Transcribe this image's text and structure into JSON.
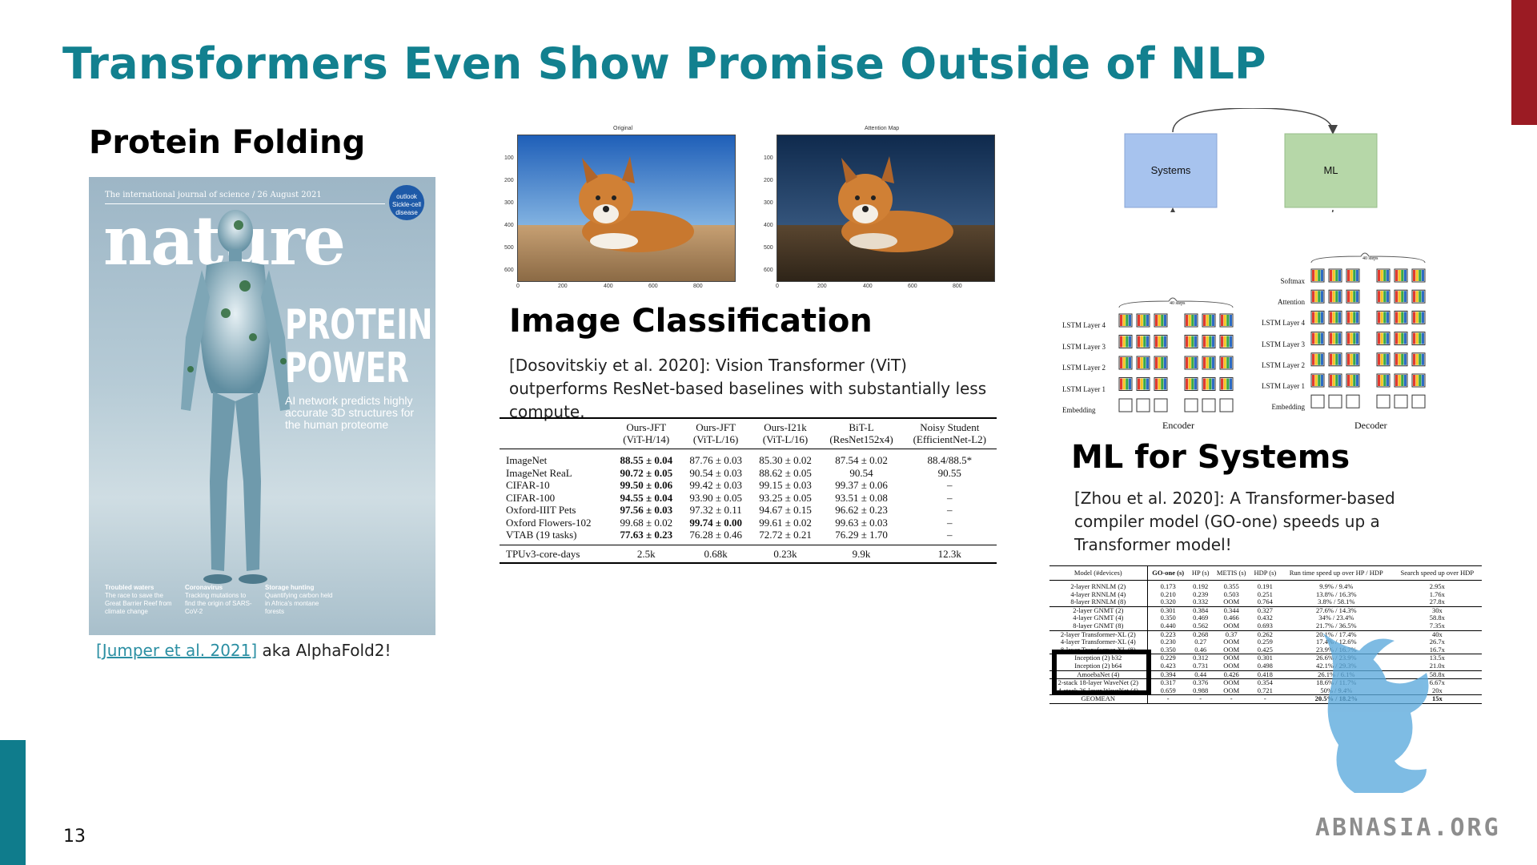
{
  "slide": {
    "title": "Transformers Even Show Promise Outside of NLP",
    "number": "13",
    "accent_colors": {
      "title": "#12808f",
      "right_bar": "#9b1b23",
      "left_bar": "#0f7c8c"
    }
  },
  "protein": {
    "heading": "Protein Folding",
    "citation_link": "[Jumper et al. 2021]",
    "citation_rest": " aka AlphaFold2!",
    "cover": {
      "top_line": "The international journal of science / 26 August 2021",
      "masthead": "nature",
      "badge": "outlook Sickle-cell disease",
      "headline_line1": "PROTEIN",
      "headline_line2": "POWER",
      "subline": "AI network predicts highly accurate 3D structures for the human proteome",
      "footer": [
        {
          "title": "Troubled waters",
          "text": "The race to save the Great Barrier Reef from climate change"
        },
        {
          "title": "Coronavirus",
          "text": "Tracking mutations to find the origin of SARS-CoV-2"
        },
        {
          "title": "Storage hunting",
          "text": "Quantifying carbon held in Africa's montane forests"
        }
      ]
    }
  },
  "image_classification": {
    "heading": "Image Classification",
    "panel_titles": [
      "Original",
      "Attention Map"
    ],
    "y_ticks": [
      "100",
      "200",
      "300",
      "400",
      "500",
      "600"
    ],
    "x_ticks": [
      "0",
      "200",
      "400",
      "600",
      "800"
    ],
    "description": "[Dosovitskiy et al. 2020]: Vision Transformer (ViT) outperforms ResNet-based baselines with substantially less compute.",
    "table": {
      "columns": [
        {
          "l1": "Ours-JFT",
          "l2": "(ViT-H/14)"
        },
        {
          "l1": "Ours-JFT",
          "l2": "(ViT-L/16)"
        },
        {
          "l1": "Ours-I21k",
          "l2": "(ViT-L/16)"
        },
        {
          "l1": "BiT-L",
          "l2": "(ResNet152x4)"
        },
        {
          "l1": "Noisy Student",
          "l2": "(EfficientNet-L2)"
        }
      ],
      "rows": [
        {
          "label": "ImageNet",
          "cells": [
            "88.55 ± 0.04",
            "87.76 ± 0.03",
            "85.30 ± 0.02",
            "87.54 ± 0.02",
            "88.4/88.5*"
          ]
        },
        {
          "label": "ImageNet ReaL",
          "cells": [
            "90.72 ± 0.05",
            "90.54 ± 0.03",
            "88.62 ± 0.05",
            "90.54",
            "90.55"
          ]
        },
        {
          "label": "CIFAR-10",
          "cells": [
            "99.50 ± 0.06",
            "99.42 ± 0.03",
            "99.15 ± 0.03",
            "99.37 ± 0.06",
            "–"
          ]
        },
        {
          "label": "CIFAR-100",
          "cells": [
            "94.55 ± 0.04",
            "93.90 ± 0.05",
            "93.25 ± 0.05",
            "93.51 ± 0.08",
            "–"
          ]
        },
        {
          "label": "Oxford-IIIT Pets",
          "cells": [
            "97.56 ± 0.03",
            "97.32 ± 0.11",
            "94.67 ± 0.15",
            "96.62 ± 0.23",
            "–"
          ]
        },
        {
          "label": "Oxford Flowers-102",
          "cells": [
            "99.68 ± 0.02",
            "99.74 ± 0.00",
            "99.61 ± 0.02",
            "99.63 ± 0.03",
            "–"
          ]
        },
        {
          "label": "VTAB (19 tasks)",
          "cells": [
            "77.63 ± 0.23",
            "76.28 ± 0.46",
            "72.72 ± 0.21",
            "76.29 ± 1.70",
            "–"
          ]
        }
      ],
      "footer": {
        "label": "TPUv3-core-days",
        "cells": [
          "2.5k",
          "0.68k",
          "0.23k",
          "9.9k",
          "12.3k"
        ]
      }
    }
  },
  "ml_systems": {
    "heading": "ML for Systems",
    "description": "[Zhou et al. 2020]: A Transformer-based compiler model (GO-one) speeds up a Transformer model!",
    "diagram": {
      "left_box": "Systems",
      "right_box": "ML",
      "left_color": "#a7c3ee",
      "right_color": "#b6d7a8"
    },
    "lstm": {
      "encoder_layers": [
        "LSTM Layer 4",
        "LSTM Layer 3",
        "LSTM Layer 2",
        "LSTM Layer 1",
        "Embedding"
      ],
      "decoder_layers": [
        "Softmax",
        "Attention",
        "LSTM Layer 4",
        "LSTM Layer 3",
        "LSTM Layer 2",
        "LSTM Layer 1",
        "Embedding"
      ],
      "encoder_label": "Encoder",
      "decoder_label": "Decoder",
      "steps_label": "40 steps"
    },
    "table": {
      "headers": [
        "Model (#devices)",
        "GO-one (s)",
        "HP (s)",
        "METIS (s)",
        "HDP (s)",
        "Run time speed up over HP / HDP",
        "Search speed up over HDP"
      ],
      "groups": [
        [
          [
            "2-layer RNNLM (2)",
            "0.173",
            "0.192",
            "0.355",
            "0.191",
            "9.9% / 9.4%",
            "2.95x"
          ],
          [
            "4-layer RNNLM (4)",
            "0.210",
            "0.239",
            "0.503",
            "0.251",
            "13.8% / 16.3%",
            "1.76x"
          ],
          [
            "8-layer RNNLM (8)",
            "0.320",
            "0.332",
            "OOM",
            "0.764",
            "3.8% / 58.1%",
            "27.8x"
          ]
        ],
        [
          [
            "2-layer GNMT (2)",
            "0.301",
            "0.384",
            "0.344",
            "0.327",
            "27.6% / 14.3%",
            "30x"
          ],
          [
            "4-layer GNMT (4)",
            "0.350",
            "0.469",
            "0.466",
            "0.432",
            "34% / 23.4%",
            "58.8x"
          ],
          [
            "8-layer GNMT (8)",
            "0.440",
            "0.562",
            "OOM",
            "0.693",
            "21.7% / 36.5%",
            "7.35x"
          ]
        ],
        [
          [
            "2-layer Transformer-XL (2)",
            "0.223",
            "0.268",
            "0.37",
            "0.262",
            "20.1% / 17.4%",
            "40x"
          ],
          [
            "4-layer Transformer-XL (4)",
            "0.230",
            "0.27",
            "OOM",
            "0.259",
            "17.4% / 12.6%",
            "26.7x"
          ],
          [
            "8-layer Transformer-XL (8)",
            "0.350",
            "0.46",
            "OOM",
            "0.425",
            "23.9% / 16.7%",
            "16.7x"
          ]
        ],
        [
          [
            "Inception (2) b32",
            "0.229",
            "0.312",
            "OOM",
            "0.301",
            "26.6% / 23.9%",
            "13.5x"
          ],
          [
            "Inception (2) b64",
            "0.423",
            "0.731",
            "OOM",
            "0.498",
            "42.1% / 29.3%",
            "21.0x"
          ]
        ],
        [
          [
            "AmoebaNet (4)",
            "0.394",
            "0.44",
            "0.426",
            "0.418",
            "26.1% / 6.1%",
            "58.8x"
          ]
        ],
        [
          [
            "2-stack 18-layer WaveNet (2)",
            "0.317",
            "0.376",
            "OOM",
            "0.354",
            "18.6% / 11.7%",
            "6.67x"
          ],
          [
            "4-stack 36-layer WaveNet (4)",
            "0.659",
            "0.988",
            "OOM",
            "0.721",
            "50% / 9.4%",
            "20x"
          ]
        ],
        [
          [
            "GEOMEAN",
            "-",
            "-",
            "-",
            "-",
            "20.5% / 18.2%",
            "15x"
          ]
        ]
      ]
    }
  },
  "watermark": {
    "text": "ABNASIA.ORG"
  }
}
